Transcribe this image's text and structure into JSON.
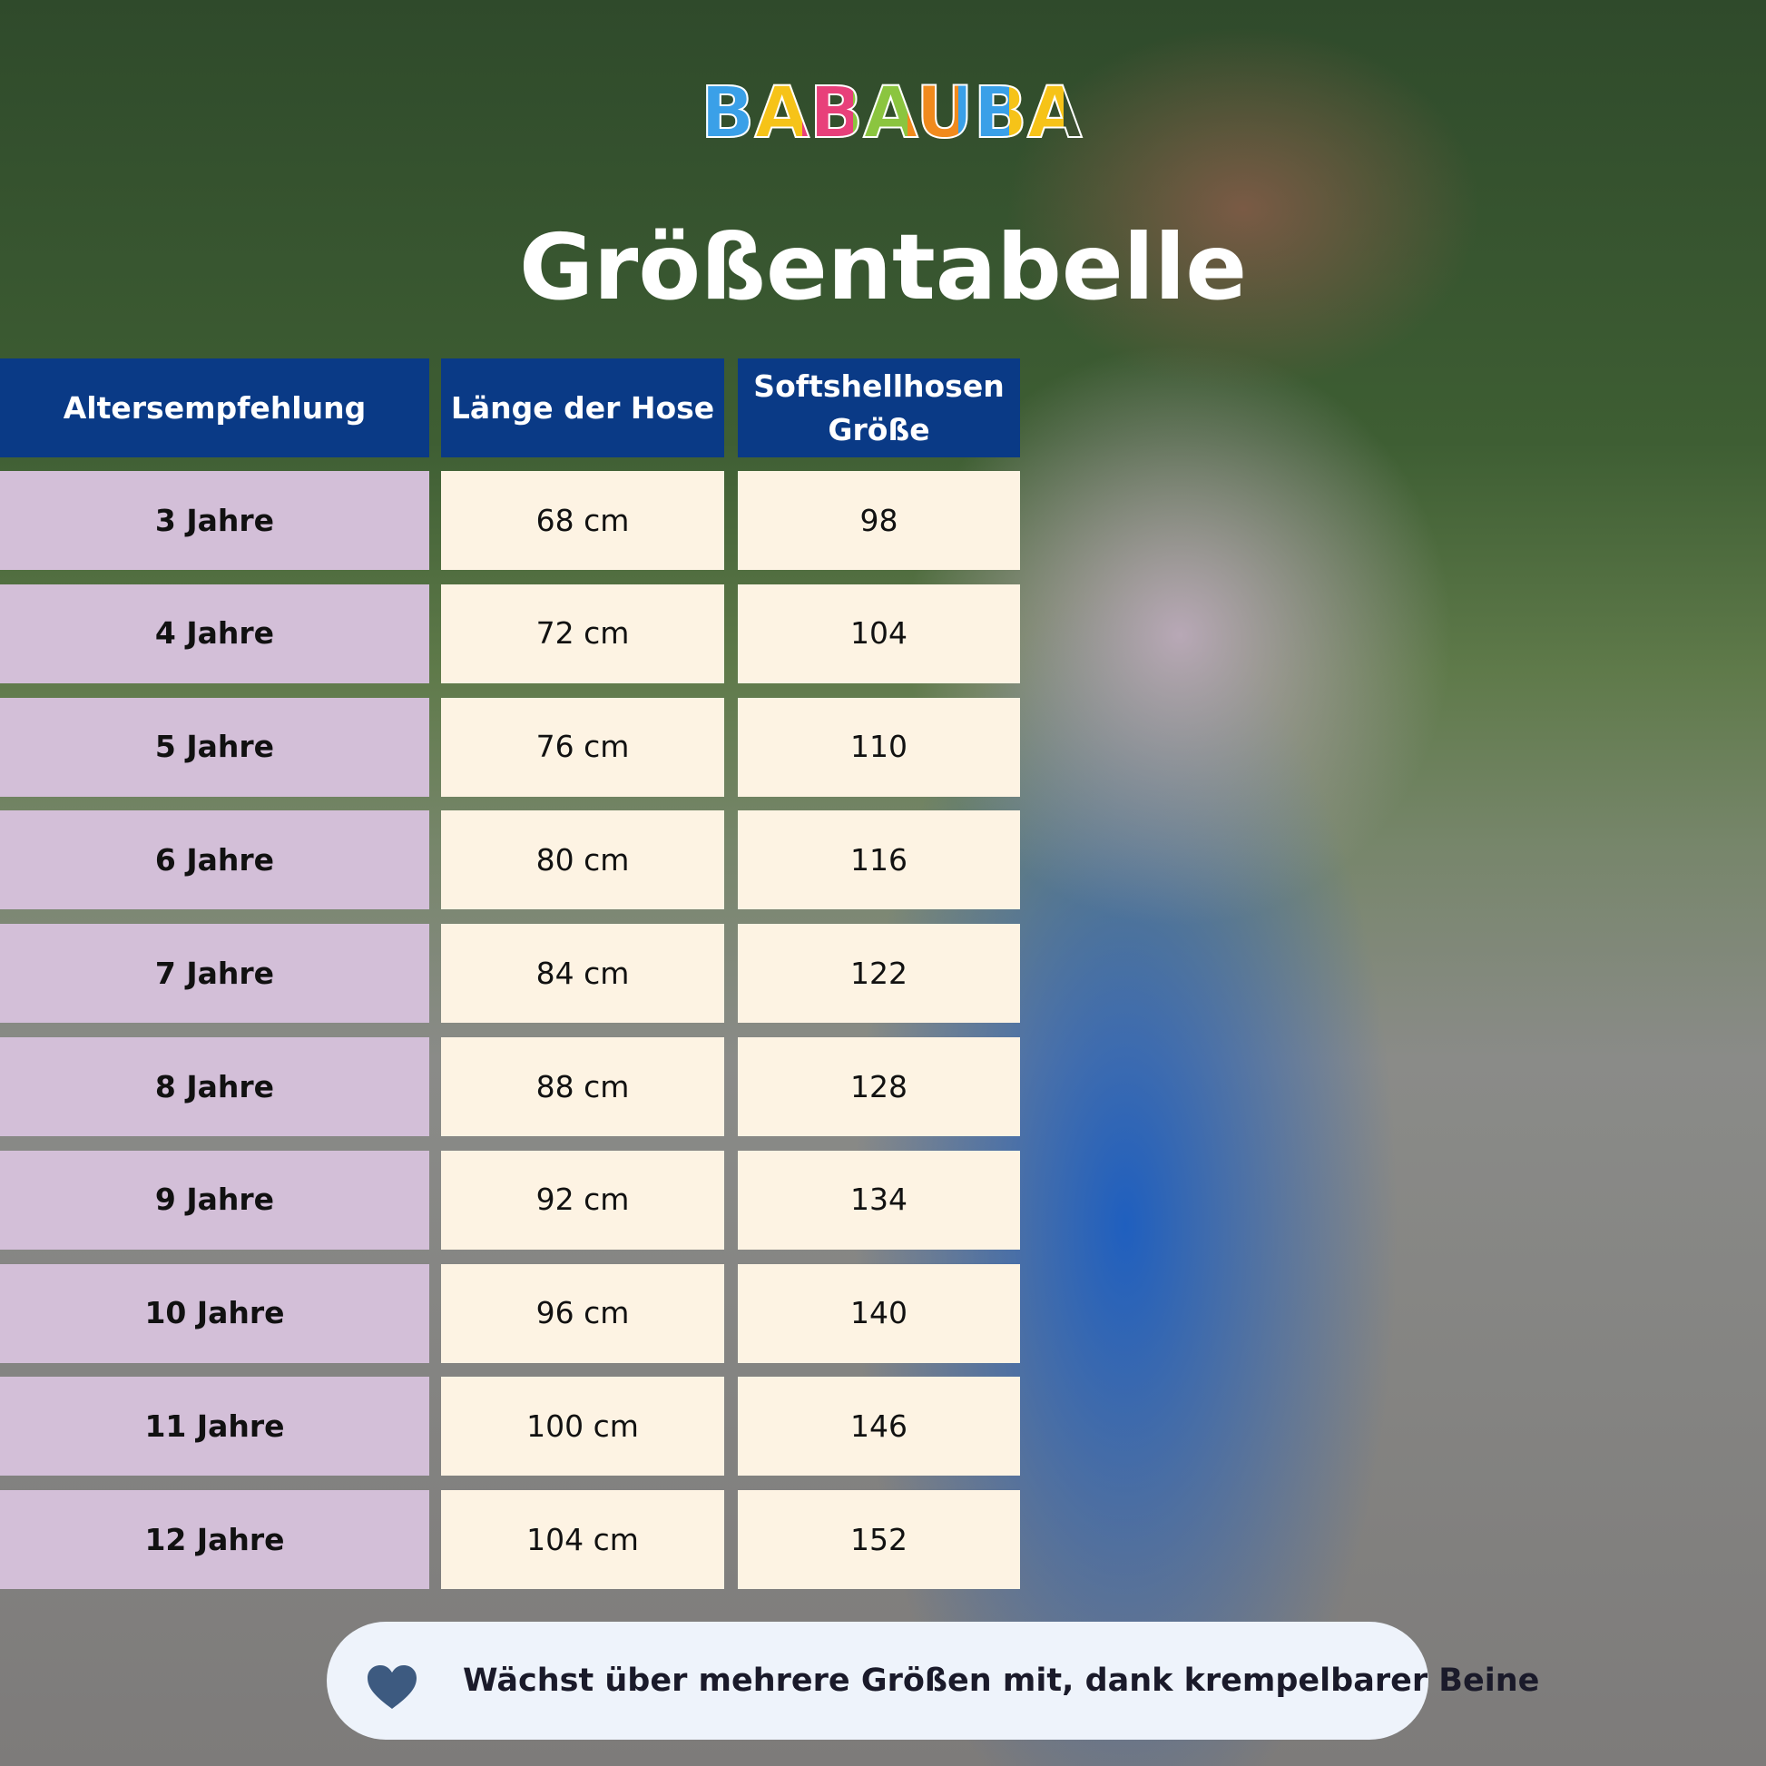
{
  "logo": "BABAUBA",
  "title": "Größentabelle",
  "table": {
    "header": [
      "Altersempfehlung",
      "Länge der Hose",
      "Softshellhosen Größe"
    ],
    "rows": [
      [
        "3 Jahre",
        "68 cm",
        "98"
      ],
      [
        "4 Jahre",
        "72 cm",
        "104"
      ],
      [
        "5 Jahre",
        "76 cm",
        "110"
      ],
      [
        "6 Jahre",
        "80 cm",
        "116"
      ],
      [
        "7 Jahre",
        "84 cm",
        "122"
      ],
      [
        "8 Jahre",
        "88 cm",
        "128"
      ],
      [
        "9 Jahre",
        "92 cm",
        "134"
      ],
      [
        "10 Jahre",
        "96 cm",
        "140"
      ],
      [
        "11 Jahre",
        "100 cm",
        "146"
      ],
      [
        "12 Jahre",
        "104 cm",
        "152"
      ]
    ]
  },
  "footer": {
    "note": "Wächst über mehrere Größen mit, dank krempelbarer Beine"
  }
}
